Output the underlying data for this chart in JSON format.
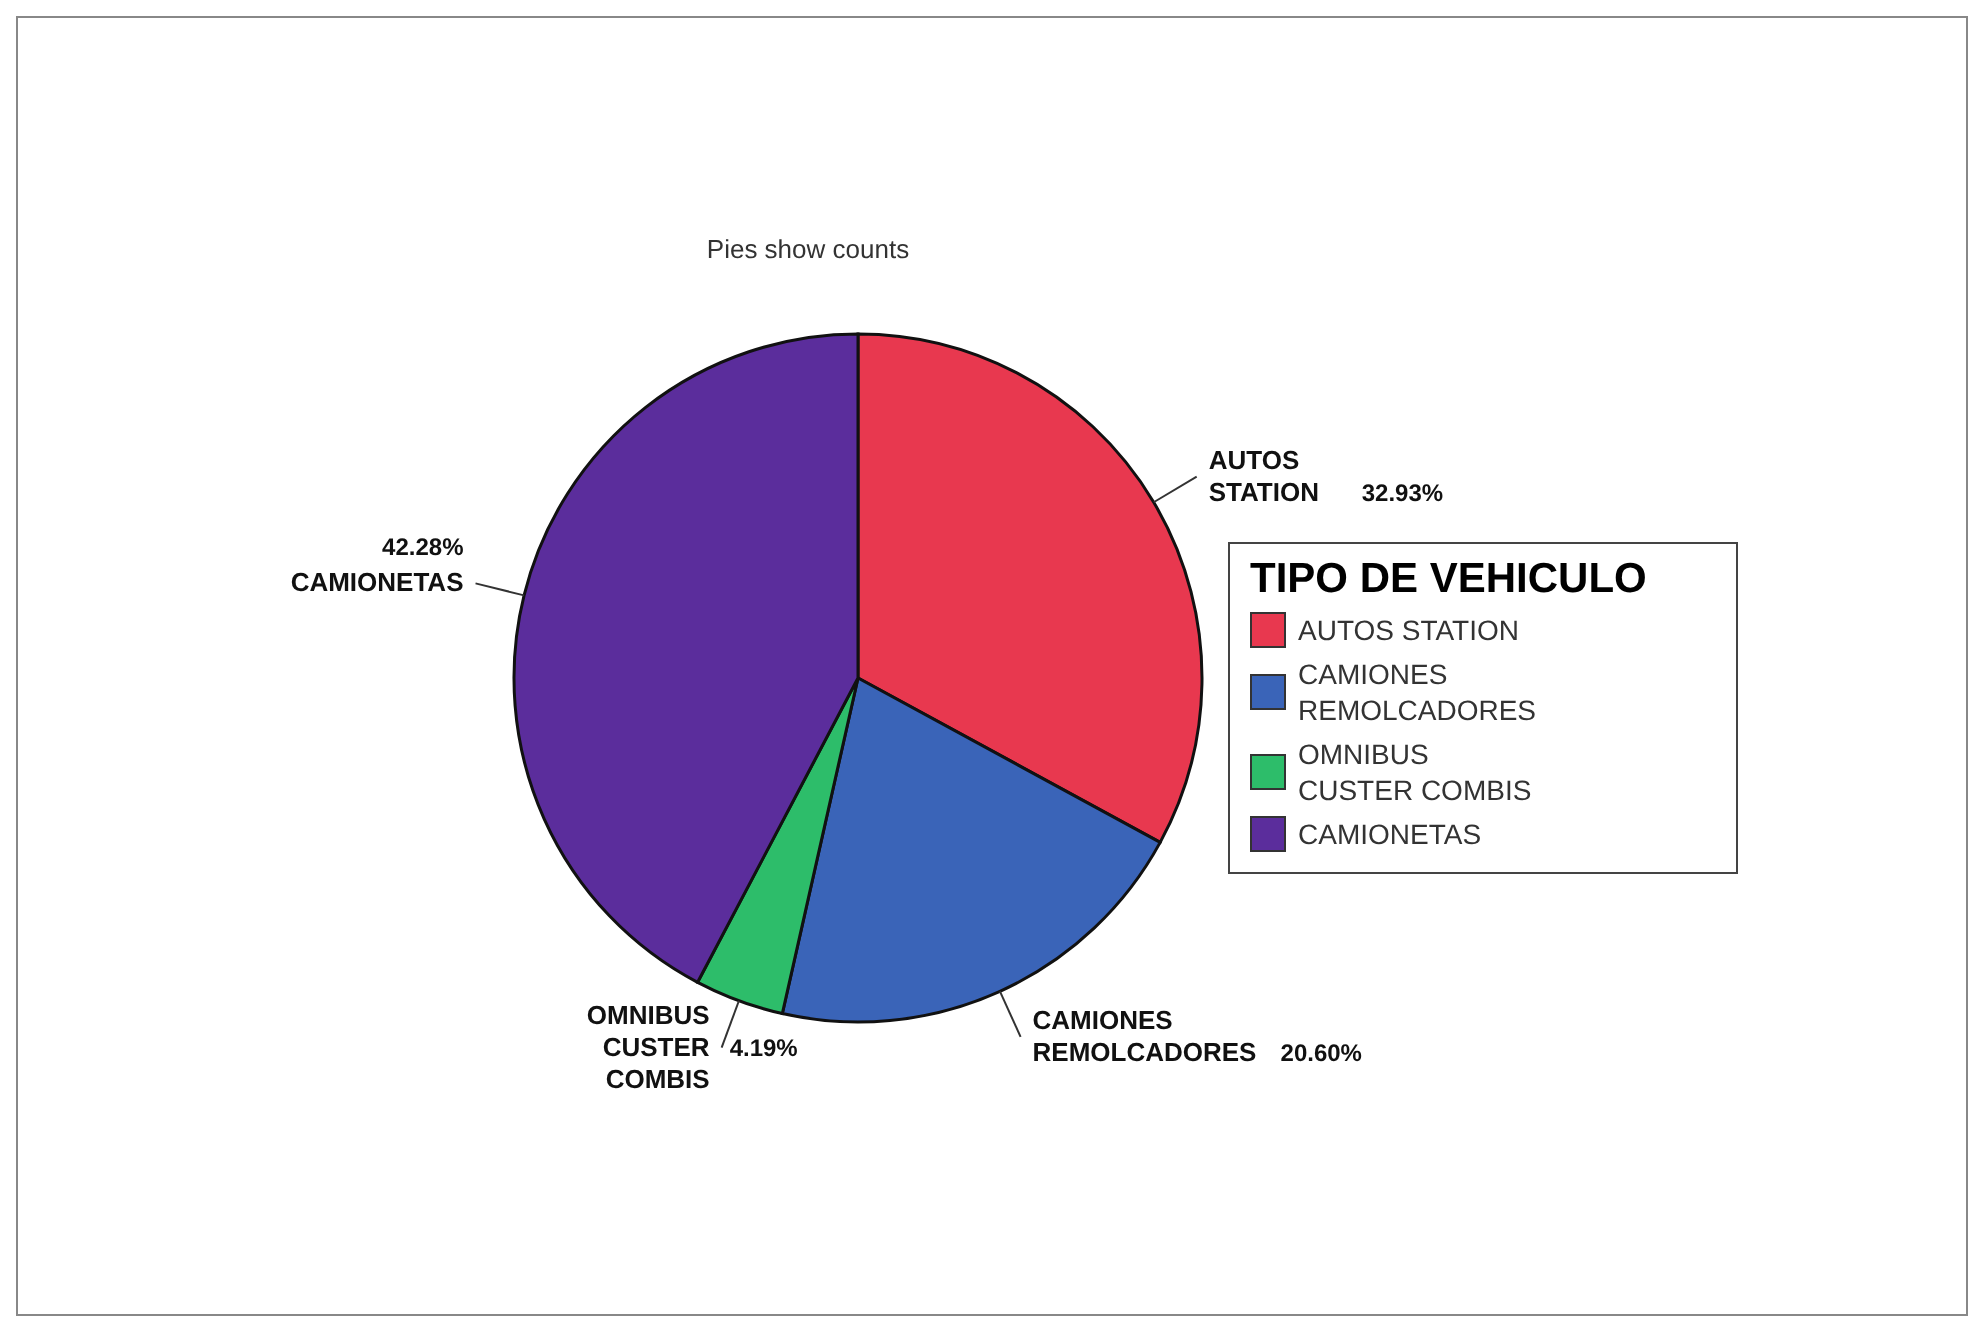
{
  "chart_data": {
    "type": "pie",
    "title": "Pies show counts",
    "legend_title": "TIPO DE VEHICULO",
    "legend": "right",
    "categories": [
      "AUTOS STATION",
      "CAMIONES REMOLCADORES",
      "OMNIBUS CUSTER COMBIS",
      "CAMIONETAS"
    ],
    "values": [
      32.93,
      20.6,
      4.19,
      42.28
    ],
    "value_labels": [
      "32.93%",
      "20.60%",
      "4.19%",
      "42.28%"
    ],
    "colors": [
      "#e8384f",
      "#3a64b8",
      "#2dbd6a",
      "#5b2d9c"
    ]
  }
}
